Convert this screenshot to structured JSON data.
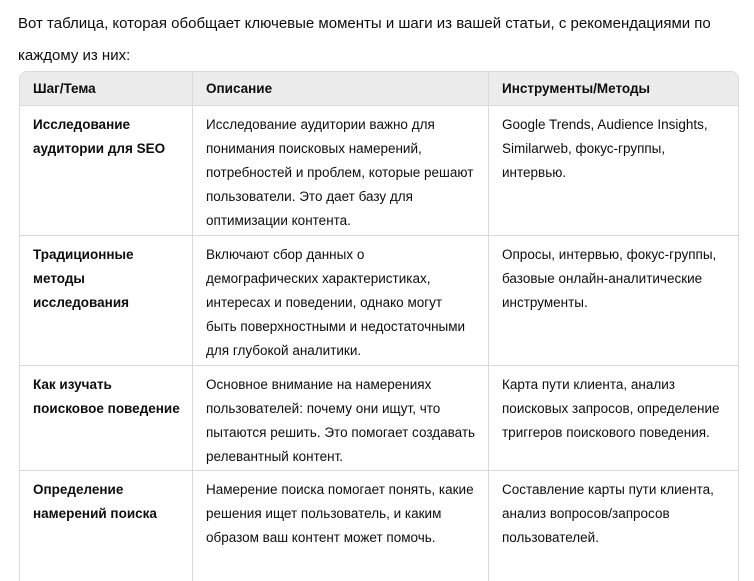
{
  "intro": "Вот таблица, которая обобщает ключевые моменты и шаги из вашей статьи, с рекомендациями по каждому из них:",
  "table": {
    "headers": [
      "Шаг/Тема",
      "Описание",
      "Инструменты/Методы"
    ],
    "rows": [
      {
        "topic": "Исследование аудитории для SEO",
        "description": "Исследование аудитории важно для понимания поисковых намерений, потребностей и проблем, которые решают пользователи. Это дает базу для оптимизации контента.",
        "tools": "Google Trends, Audience Insights, Similarweb, фокус-группы, интервью."
      },
      {
        "topic": "Традиционные методы исследования",
        "description": "Включают сбор данных о демографических характеристиках, интересах и поведении, однако могут быть поверхностными и недостаточными для глубокой аналитики.",
        "tools": "Опросы, интервью, фокус-группы, базовые онлайн-аналитические инструменты."
      },
      {
        "topic": "Как изучать поисковое поведение",
        "description": "Основное внимание на намерениях пользователей: почему они ищут, что пытаются решить. Это помогает создавать релевантный контент.",
        "tools": "Карта пути клиента, анализ поисковых запросов, определение триггеров поискового поведения."
      },
      {
        "topic": "Определение намерений поиска",
        "description": "Намерение поиска помогает понять, какие решения ищет пользователь, и каким образом ваш контент может помочь.",
        "tools": "Составление карты пути клиента, анализ вопросов/запросов пользователей."
      }
    ]
  }
}
